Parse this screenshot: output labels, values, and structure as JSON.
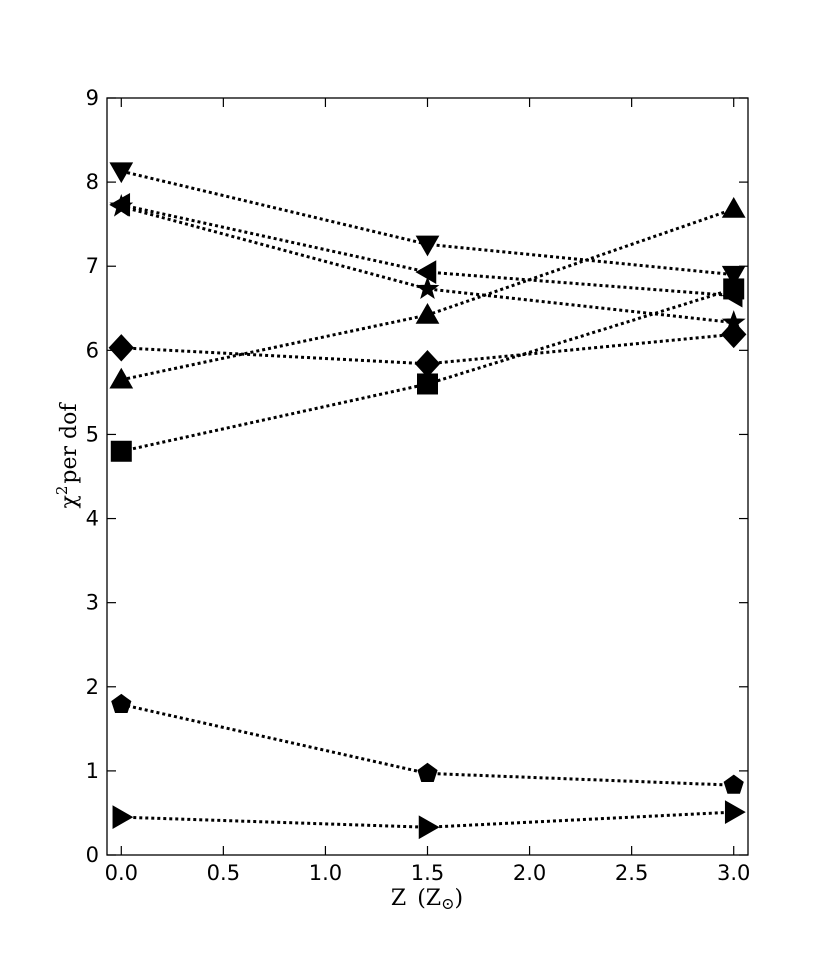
{
  "chart_data": {
    "type": "line",
    "xlabel_main": "Z",
    "xlabel_open": "(",
    "xlabel_sub_base": "Z",
    "xlabel_sub_symbol": "⊙",
    "xlabel_close": ")",
    "ylabel_main": "χ",
    "ylabel_sup": "2",
    "ylabel_rest": "per dof",
    "xlim": [
      -0.07,
      3.07
    ],
    "ylim": [
      0,
      9
    ],
    "xticks": [
      "0.0",
      "0.5",
      "1.0",
      "1.5",
      "2.0",
      "2.5",
      "3.0"
    ],
    "yticks": [
      "0",
      "1",
      "2",
      "3",
      "4",
      "5",
      "6",
      "7",
      "8",
      "9"
    ],
    "x": [
      0.0,
      1.5,
      3.0
    ],
    "series": [
      {
        "marker": "triangle-down",
        "values": [
          8.13,
          7.26,
          6.9
        ]
      },
      {
        "marker": "triangle-left",
        "values": [
          7.73,
          6.93,
          6.65
        ]
      },
      {
        "marker": "star",
        "values": [
          7.71,
          6.73,
          6.33
        ]
      },
      {
        "marker": "triangle-up",
        "values": [
          5.65,
          6.42,
          7.68
        ]
      },
      {
        "marker": "diamond",
        "values": [
          6.03,
          5.84,
          6.19
        ]
      },
      {
        "marker": "square",
        "values": [
          4.8,
          5.6,
          6.73
        ]
      },
      {
        "marker": "pentagon",
        "values": [
          1.79,
          0.97,
          0.83
        ]
      },
      {
        "marker": "triangle-right",
        "values": [
          0.45,
          0.33,
          0.51
        ]
      }
    ],
    "line_style": "dotted",
    "color": "#000000",
    "grid": false
  }
}
